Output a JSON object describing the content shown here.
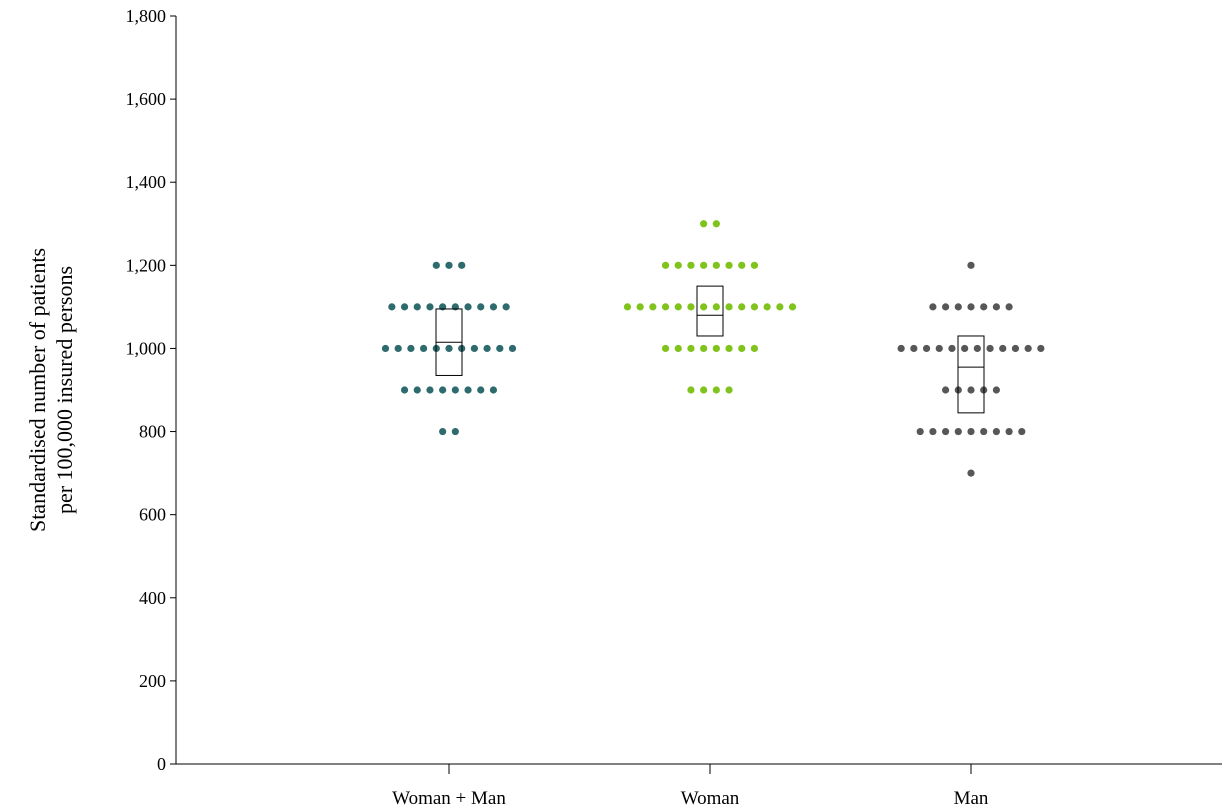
{
  "chart_data": {
    "type": "dot_strip_with_boxes",
    "ylabel": [
      "Standardised number of patients",
      "per 100,000 insured persons"
    ],
    "xlabel": "",
    "ylim": [
      0,
      1800
    ],
    "yticks": [
      0,
      200,
      400,
      600,
      800,
      1000,
      1200,
      1400,
      1600,
      1800
    ],
    "ytick_labels": [
      "0",
      "200",
      "400",
      "600",
      "800",
      "1,000",
      "1,200",
      "1,400",
      "1,600",
      "1,800"
    ],
    "grid": false,
    "categories": [
      "Woman + Man",
      "Woman",
      "Man"
    ],
    "series": [
      {
        "category": "Woman + Man",
        "color": "#2e6b6e",
        "dots": [
          {
            "value": 800,
            "count": 2
          },
          {
            "value": 900,
            "count": 8
          },
          {
            "value": 1000,
            "count": 11
          },
          {
            "value": 1100,
            "count": 10
          },
          {
            "value": 1200,
            "count": 3
          }
        ],
        "box": {
          "q1": 935,
          "median": 1015,
          "q3": 1095
        }
      },
      {
        "category": "Woman",
        "color": "#7fc31c",
        "dots": [
          {
            "value": 900,
            "count": 4
          },
          {
            "value": 1000,
            "count": 8
          },
          {
            "value": 1100,
            "count": 14
          },
          {
            "value": 1200,
            "count": 8
          },
          {
            "value": 1300,
            "count": 2
          }
        ],
        "box": {
          "q1": 1030,
          "median": 1080,
          "q3": 1150
        }
      },
      {
        "category": "Man",
        "color": "#575757",
        "dots": [
          {
            "value": 700,
            "count": 1
          },
          {
            "value": 800,
            "count": 9
          },
          {
            "value": 900,
            "count": 5
          },
          {
            "value": 1000,
            "count": 12
          },
          {
            "value": 1100,
            "count": 7
          },
          {
            "value": 1200,
            "count": 1
          }
        ],
        "box": {
          "q1": 845,
          "median": 955,
          "q3": 1030
        }
      }
    ]
  }
}
